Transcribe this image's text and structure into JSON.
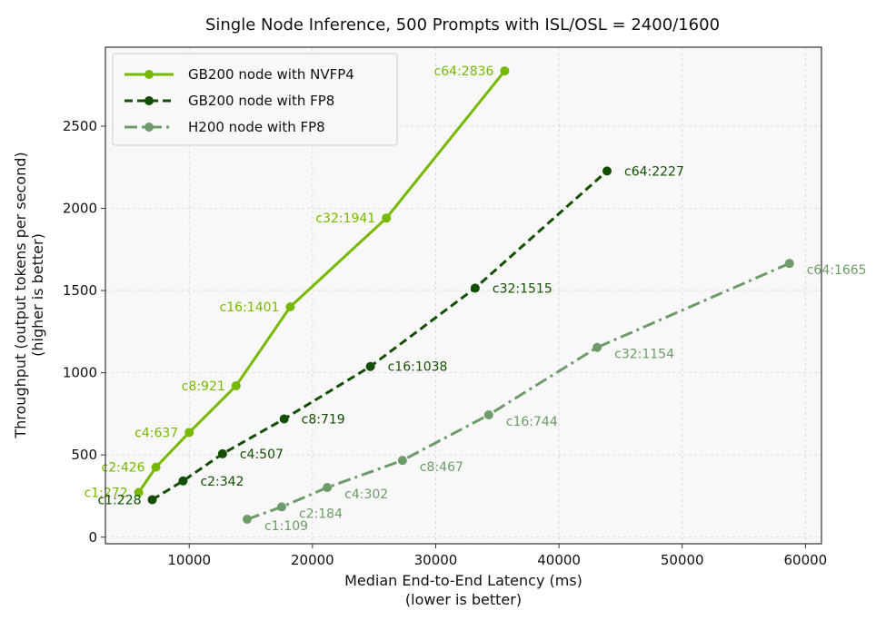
{
  "chart_data": {
    "type": "line",
    "title": "Single Node Inference, 500 Prompts with ISL/OSL = 2400/1600",
    "xlabel": [
      "Median End-to-End Latency (ms)",
      "(lower is better)"
    ],
    "ylabel": [
      "Throughput (output tokens per second)",
      "(higher is better)"
    ],
    "xlim": [
      3200,
      61300
    ],
    "ylim": [
      -40,
      2980
    ],
    "xticks": [
      10000,
      20000,
      30000,
      40000,
      50000,
      60000
    ],
    "yticks": [
      0,
      500,
      1000,
      1500,
      2000,
      2500
    ],
    "grid": true,
    "legend_position": "top-left",
    "series": [
      {
        "name": "GB200 node with NVFP4",
        "color": "#76b900",
        "line_style": "solid",
        "points": [
          {
            "x": 5900,
            "y": 272,
            "label": "c1:272"
          },
          {
            "x": 7300,
            "y": 426,
            "label": "c2:426"
          },
          {
            "x": 10000,
            "y": 637,
            "label": "c4:637"
          },
          {
            "x": 13800,
            "y": 921,
            "label": "c8:921"
          },
          {
            "x": 18200,
            "y": 1401,
            "label": "c16:1401"
          },
          {
            "x": 26000,
            "y": 1941,
            "label": "c32:1941"
          },
          {
            "x": 35600,
            "y": 2836,
            "label": "c64:2836"
          }
        ]
      },
      {
        "name": "GB200 node with FP8",
        "color": "#134f03",
        "line_style": "dashed",
        "points": [
          {
            "x": 7000,
            "y": 228,
            "label": "c1:228"
          },
          {
            "x": 9500,
            "y": 342,
            "label": "c2:342"
          },
          {
            "x": 12700,
            "y": 507,
            "label": "c4:507"
          },
          {
            "x": 17700,
            "y": 719,
            "label": "c8:719"
          },
          {
            "x": 24700,
            "y": 1038,
            "label": "c16:1038"
          },
          {
            "x": 33200,
            "y": 1515,
            "label": "c32:1515"
          },
          {
            "x": 43900,
            "y": 2227,
            "label": "c64:2227"
          }
        ]
      },
      {
        "name": "H200 node with FP8",
        "color": "#6e9b6a",
        "line_style": "dashdot",
        "points": [
          {
            "x": 14700,
            "y": 109,
            "label": "c1:109"
          },
          {
            "x": 17500,
            "y": 184,
            "label": "c2:184"
          },
          {
            "x": 21200,
            "y": 302,
            "label": "c4:302"
          },
          {
            "x": 27300,
            "y": 467,
            "label": "c8:467"
          },
          {
            "x": 34300,
            "y": 744,
            "label": "c16:744"
          },
          {
            "x": 43100,
            "y": 1154,
            "label": "c32:1154"
          },
          {
            "x": 58700,
            "y": 1665,
            "label": "c64:1665"
          }
        ]
      }
    ]
  }
}
